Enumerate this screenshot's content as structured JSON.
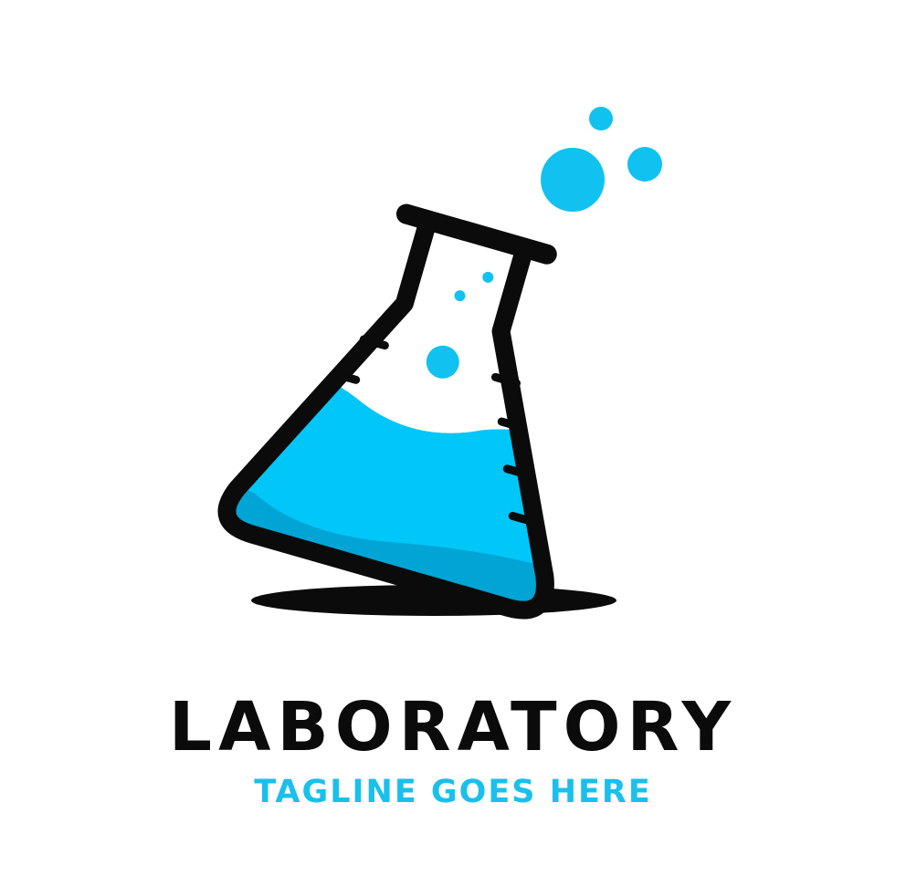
{
  "logo": {
    "icon": "flask-icon",
    "colors": {
      "outline": "#0b0b0b",
      "liquid": "#00c7f7",
      "liquid_shadow": "#00a5d6",
      "bubble": "#11c2f0",
      "shadow": "#0b0b0b",
      "background": "#ffffff"
    }
  },
  "brand": {
    "name": "LABORATORY",
    "tagline": "TAGLINE GOES HERE"
  }
}
